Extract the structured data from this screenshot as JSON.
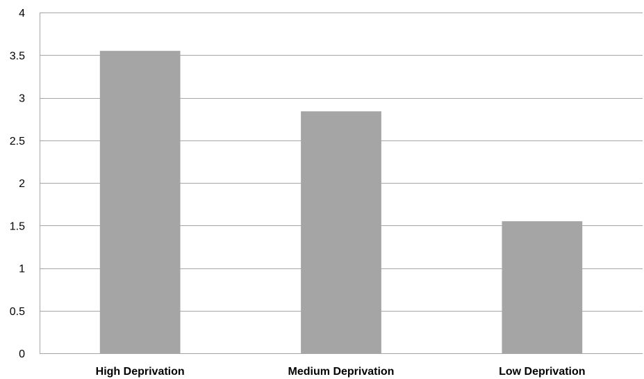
{
  "chart_data": {
    "type": "bar",
    "title": "",
    "xlabel": "",
    "ylabel": "",
    "categories": [
      "High Deprivation",
      "Medium Deprivation",
      "Low Deprivation"
    ],
    "values": [
      3.55,
      2.84,
      1.55
    ],
    "ylim": [
      0,
      4
    ],
    "yticks": [
      0,
      0.5,
      1,
      1.5,
      2,
      2.5,
      3,
      3.5,
      4
    ],
    "ytick_labels": [
      "0",
      "0.5",
      "1",
      "1.5",
      "2",
      "2.5",
      "3",
      "3.5",
      "4"
    ],
    "grid": true,
    "legend": "none",
    "bar_color": "#a5a5a5",
    "grid_color": "#a6a6a6"
  }
}
